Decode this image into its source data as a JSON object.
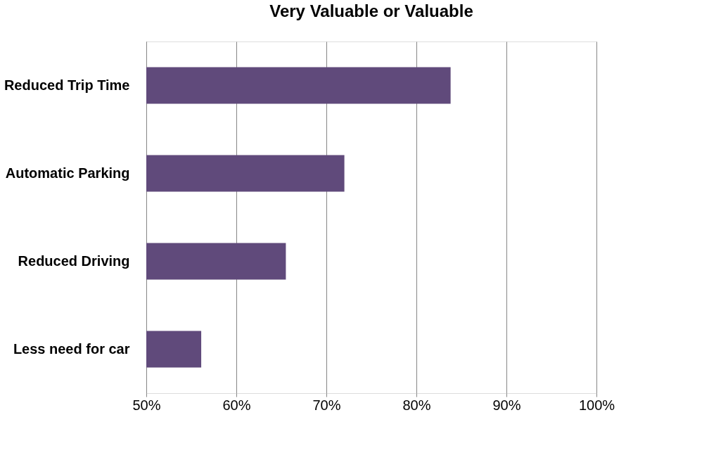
{
  "chart_data": {
    "type": "bar",
    "orientation": "horizontal",
    "title": "Very Valuable or Valuable",
    "categories": [
      "Reduced Trip Time",
      "Automatic Parking",
      "Reduced Driving",
      "Less need for car"
    ],
    "values": [
      83.8,
      72,
      65.5,
      56.1
    ],
    "color": "#604a7b",
    "xlim": [
      50,
      100
    ],
    "xticks": [
      {
        "value": 50,
        "label": "50%"
      },
      {
        "value": 60,
        "label": "60%"
      },
      {
        "value": 70,
        "label": "70%"
      },
      {
        "value": 80,
        "label": "80%"
      },
      {
        "value": 90,
        "label": "90%"
      },
      {
        "value": 100,
        "label": "100%"
      }
    ],
    "grid": "x"
  }
}
